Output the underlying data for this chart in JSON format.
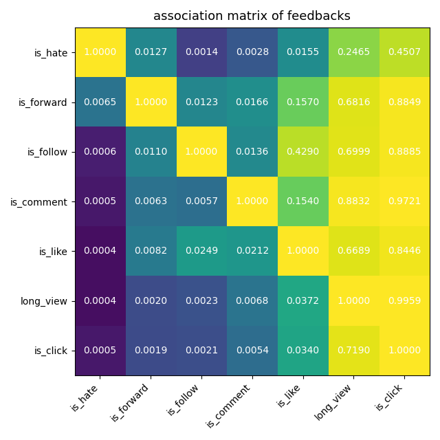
{
  "title": "association matrix of feedbacks",
  "labels": [
    "is_hate",
    "is_forward",
    "is_follow",
    "is_comment",
    "is_like",
    "long_view",
    "is_click"
  ],
  "matrix": [
    [
      1.0,
      0.0127,
      0.0014,
      0.0028,
      0.0155,
      0.2465,
      0.4507
    ],
    [
      0.0065,
      1.0,
      0.0123,
      0.0166,
      0.157,
      0.6816,
      0.8849
    ],
    [
      0.0006,
      0.011,
      1.0,
      0.0136,
      0.429,
      0.6999,
      0.8885
    ],
    [
      0.0005,
      0.0063,
      0.0057,
      1.0,
      0.154,
      0.8832,
      0.9721
    ],
    [
      0.0004,
      0.0082,
      0.0249,
      0.0212,
      1.0,
      0.6689,
      0.8446
    ],
    [
      0.0004,
      0.002,
      0.0023,
      0.0068,
      0.0372,
      1.0,
      0.9959
    ],
    [
      0.0005,
      0.0019,
      0.0021,
      0.0054,
      0.034,
      0.719,
      1.0
    ]
  ],
  "text_formats": [
    [
      "1.0000",
      "0.0127",
      "0.0014",
      "0.0028",
      "0.0155",
      "0.2465",
      "0.4507"
    ],
    [
      "0.0065",
      "1.0000",
      "0.0123",
      "0.0166",
      "0.1570",
      "0.6816",
      "0.8849"
    ],
    [
      "0.0006",
      "0.0110",
      "1.0000",
      "0.0136",
      "0.4290",
      "0.6999",
      "0.8885"
    ],
    [
      "0.0005",
      "0.0063",
      "0.0057",
      "1.0000",
      "0.1540",
      "0.8832",
      "0.9721"
    ],
    [
      "0.0004",
      "0.0082",
      "0.0249",
      "0.0212",
      "1.0000",
      "0.6689",
      "0.8446"
    ],
    [
      "0.0004",
      "0.0020",
      "0.0023",
      "0.0068",
      "0.0372",
      "1.0000",
      "0.9959"
    ],
    [
      "0.0005",
      "0.0019",
      "0.0021",
      "0.0054",
      "0.0340",
      "0.7190",
      "1.0000"
    ]
  ],
  "cmap": "viridis",
  "log_scale": true,
  "vmin": 0.0003,
  "vmax": 1.0,
  "figsize": [
    6.4,
    6.4
  ],
  "dpi": 100,
  "title_fontsize": 13,
  "tick_fontsize": 10,
  "annot_fontsize": 10,
  "xlabel_rotation": 45,
  "ylabel_rotation": 0
}
